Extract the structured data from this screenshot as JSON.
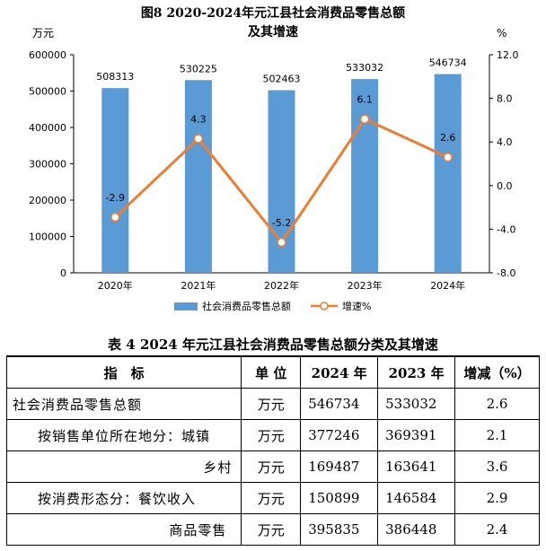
{
  "chart_data": {
    "type": "bar+line",
    "title": "图8   2020-2024年元江县社会消费品零售总额",
    "subtitle": "及其增速",
    "left_unit": "万元",
    "right_unit": "%",
    "categories": [
      "2020年",
      "2021年",
      "2022年",
      "2023年",
      "2024年"
    ],
    "series": [
      {
        "name": "社会消费品零售总额",
        "type": "bar",
        "axis": "left",
        "color": "#5b9bd5",
        "values": [
          508313,
          530225,
          502463,
          533032,
          546734
        ],
        "labels": [
          "508313",
          "530225",
          "502463",
          "533032",
          "546734"
        ]
      },
      {
        "name": "增速%",
        "type": "line",
        "axis": "right",
        "color": "#ed7d31",
        "values": [
          -2.9,
          4.3,
          -5.2,
          6.1,
          2.6
        ],
        "labels": [
          "-2.9",
          "4.3",
          "-5.2",
          "6.1",
          "2.6"
        ]
      }
    ],
    "left_axis": {
      "min": 0,
      "max": 600000,
      "ticks": [
        0,
        100000,
        200000,
        300000,
        400000,
        500000,
        600000
      ],
      "tick_labels": [
        "0",
        "100000",
        "200000",
        "300000",
        "400000",
        "500000",
        "600000"
      ]
    },
    "right_axis": {
      "min": -8,
      "max": 12,
      "ticks": [
        -8,
        -4,
        0,
        4,
        8,
        12
      ],
      "tick_labels": [
        "-8.0",
        "-4.0",
        "0.0",
        "4.0",
        "8.0",
        "12.0"
      ]
    },
    "legend": [
      "社会消费品零售总额",
      "增速%"
    ],
    "legend_position": "bottom"
  },
  "table": {
    "title": "表 4   2024 年元江县社会消费品零售总额分类及其增速",
    "headers": [
      "指　标",
      "单 位",
      "2024 年",
      "2023 年",
      "增减（%）"
    ],
    "rows": [
      {
        "label": "社会消费品零售总额",
        "unit": "万元",
        "y2024": "546734",
        "y2023": "533032",
        "change": "2.6"
      },
      {
        "label": "按销售单位所在地分：城镇",
        "unit": "万元",
        "y2024": "377246",
        "y2023": "369391",
        "change": "2.1"
      },
      {
        "label": "乡村",
        "unit": "万元",
        "y2024": "169487",
        "y2023": "163641",
        "change": "3.6"
      },
      {
        "label": "按消费形态分：餐饮收入",
        "unit": "万元",
        "y2024": "150899",
        "y2023": "146584",
        "change": "2.9"
      },
      {
        "label": "商品零售",
        "unit": "万元",
        "y2024": "395835",
        "y2023": "386448",
        "change": "2.4"
      }
    ]
  }
}
